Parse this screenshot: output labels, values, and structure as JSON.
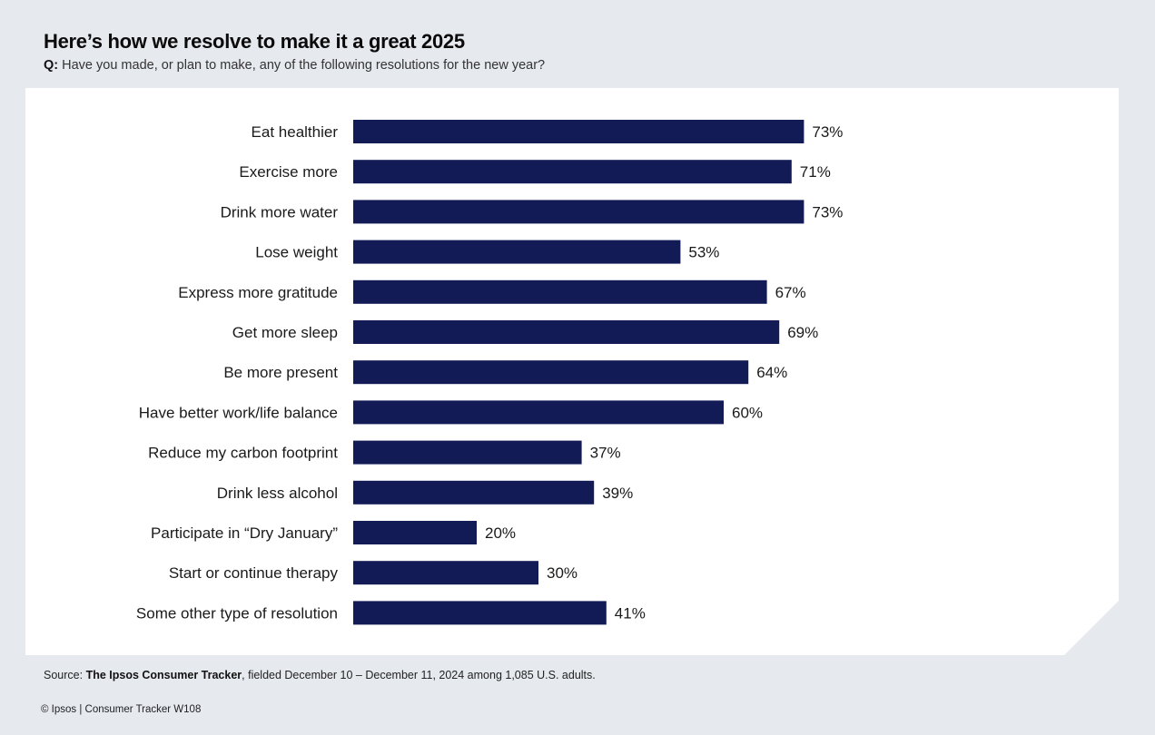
{
  "header": {
    "title": "Here’s how we resolve to make it a great 2025",
    "question_prefix": "Q:",
    "question_text": " Have you made, or plan to make, any of the following resolutions for the new year?"
  },
  "footer": {
    "source_prefix": "Source: ",
    "source_name": "The Ipsos Consumer Tracker",
    "source_rest": ", fielded December 10 – December 11, 2024 among 1,085 U.S. adults.",
    "copyright": "© Ipsos | Consumer Tracker W108"
  },
  "colors": {
    "bar": "#131b57",
    "background": "#e6e9ee",
    "card": "#ffffff"
  },
  "chart_data": {
    "type": "bar",
    "orientation": "horizontal",
    "categories": [
      "Eat healthier",
      "Exercise more",
      "Drink more water",
      "Lose weight",
      "Express more gratitude",
      "Get more sleep",
      "Be more present",
      "Have better work/life balance",
      "Reduce my carbon footprint",
      "Drink less alcohol",
      "Participate in “Dry January”",
      "Start or continue therapy",
      "Some other type of resolution"
    ],
    "values": [
      73,
      71,
      73,
      53,
      67,
      69,
      64,
      60,
      37,
      39,
      20,
      30,
      41
    ],
    "value_labels": [
      "73%",
      "71%",
      "73%",
      "53%",
      "67%",
      "69%",
      "64%",
      "60%",
      "37%",
      "39%",
      "20%",
      "30%",
      "41%"
    ],
    "unit": "%",
    "xlim": [
      0,
      100
    ],
    "grid": false,
    "legend": "none"
  }
}
